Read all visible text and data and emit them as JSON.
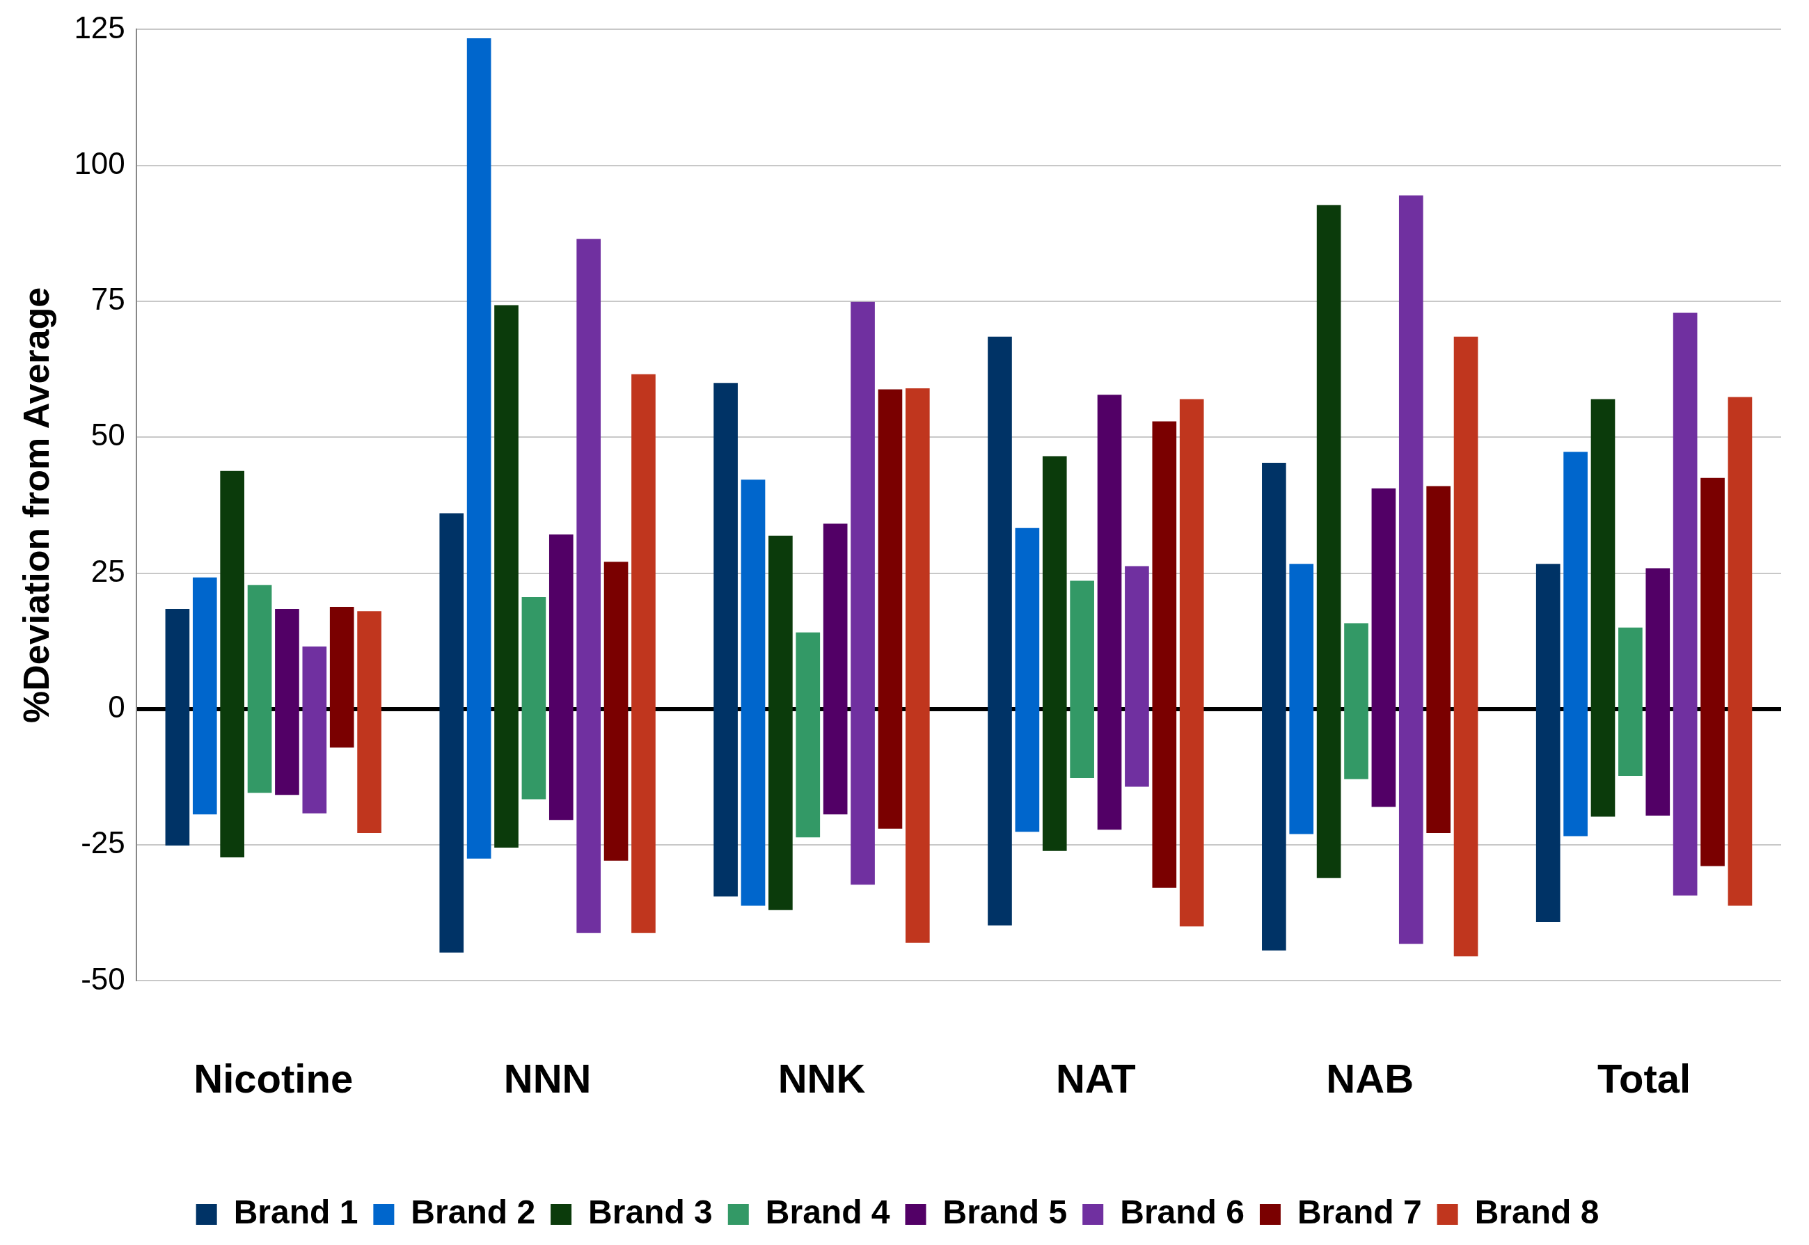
{
  "chart_data": {
    "type": "bar",
    "ylabel": "%Deviation from Average",
    "categories": [
      "Nicotine",
      "NNN",
      "NNK",
      "NAT",
      "NAB",
      "Total"
    ],
    "ylim": [
      -50,
      125
    ],
    "yticks": [
      -50,
      -25,
      0,
      25,
      50,
      75,
      100,
      125
    ],
    "grid": "y",
    "legend": "bottom",
    "series": [
      {
        "name": "Brand 1",
        "color": "#003366",
        "base": [
          -25.1,
          -44.8,
          -34.5,
          -39.8,
          -44.4,
          -39.2
        ],
        "values": [
          43.5,
          80.8,
          94.5,
          108.3,
          89.7,
          65.9
        ]
      },
      {
        "name": "Brand 2",
        "color": "#0066cc",
        "base": [
          -19.4,
          -27.5,
          -36.2,
          -22.6,
          -23.0,
          -23.4
        ],
        "values": [
          43.6,
          150.9,
          78.4,
          55.9,
          49.7,
          70.7
        ]
      },
      {
        "name": "Brand 3",
        "color": "#0b3b0b",
        "base": [
          -27.3,
          -25.5,
          -37.0,
          -26.1,
          -31.1,
          -19.8
        ],
        "values": [
          71.1,
          99.8,
          68.9,
          72.6,
          123.8,
          76.8
        ]
      },
      {
        "name": "Brand 4",
        "color": "#339966",
        "base": [
          -15.4,
          -16.6,
          -23.6,
          -12.7,
          -12.9,
          -12.3
        ],
        "values": [
          38.2,
          37.2,
          37.7,
          36.3,
          28.7,
          27.3
        ]
      },
      {
        "name": "Brand 5",
        "color": "#520066",
        "base": [
          -15.8,
          -20.4,
          -19.4,
          -22.2,
          -18.0,
          -19.6
        ],
        "values": [
          34.2,
          52.5,
          53.5,
          80.0,
          58.6,
          45.5
        ]
      },
      {
        "name": "Brand 6",
        "color": "#7030a0",
        "base": [
          -19.2,
          -41.2,
          -32.3,
          -14.3,
          -43.2,
          -34.3
        ],
        "values": [
          30.7,
          127.7,
          107.2,
          40.6,
          137.7,
          107.2
        ]
      },
      {
        "name": "Brand 7",
        "color": "#7a0000",
        "base": [
          -7.1,
          -27.9,
          -22.0,
          -32.9,
          -22.8,
          -28.9
        ],
        "values": [
          25.9,
          55.0,
          80.8,
          85.8,
          63.8,
          71.4
        ]
      },
      {
        "name": "Brand 8",
        "color": "#c0361e",
        "base": [
          -22.8,
          -41.2,
          -43.0,
          -40.0,
          -45.5,
          -36.2
        ],
        "values": [
          40.8,
          102.8,
          102.0,
          97.0,
          114.0,
          93.6
        ]
      }
    ]
  }
}
